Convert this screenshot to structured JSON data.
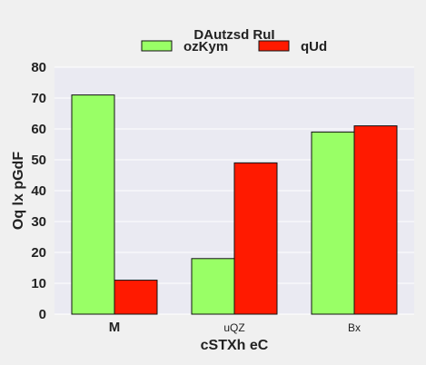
{
  "chart_data": {
    "type": "bar",
    "categories": [
      "M",
      "uQZ",
      "Bx"
    ],
    "series": [
      {
        "name": "ozKym",
        "values": [
          71,
          18,
          59
        ],
        "color": "#99ff66"
      },
      {
        "name": "qUd",
        "values": [
          11,
          49,
          61
        ],
        "color": "#ff1a00"
      }
    ],
    "legend_title": "DAutzsd  RuI",
    "xlabel": "cSTXh  eC",
    "ylabel": "Oq lx  pGdF",
    "ylim": [
      0,
      80
    ],
    "yticks": [
      0,
      10,
      20,
      30,
      40,
      50,
      60,
      70,
      80
    ],
    "grid": true,
    "legend_position": "top-center",
    "plot_background": "#eaeaf2",
    "grid_color": "#ffffff"
  }
}
